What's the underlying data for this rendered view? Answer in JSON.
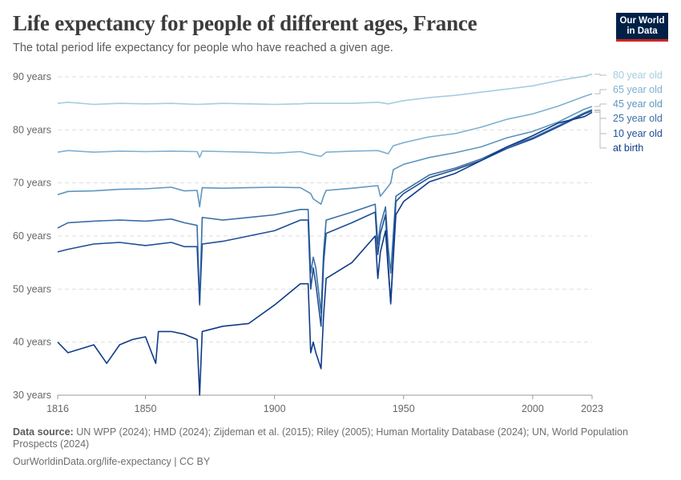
{
  "header": {
    "title": "Life expectancy for people of different ages, France",
    "subtitle": "The total period life expectancy for people who have reached a given age.",
    "logo_line1": "Our World",
    "logo_line2": "in Data"
  },
  "footer": {
    "source_label": "Data source:",
    "source_text": "UN WPP (2024); HMD (2024); Zijdeman et al. (2015); Riley (2005); Human Mortality Database (2024); UN, World Population Prospects (2024)",
    "link_text": "OurWorldinData.org/life-expectancy | CC BY"
  },
  "chart_data": {
    "type": "line",
    "title": "Life expectancy for people of different ages, France",
    "subtitle": "The total period life expectancy for people who have reached a given age.",
    "xlim": [
      1816,
      2023
    ],
    "ylim": [
      30,
      90
    ],
    "x_ticks": [
      1816,
      1850,
      1900,
      1950,
      2000,
      2023
    ],
    "y_ticks": [
      30,
      40,
      50,
      60,
      70,
      80,
      90
    ],
    "y_tick_labels": [
      "30 years",
      "40 years",
      "50 years",
      "60 years",
      "70 years",
      "80 years",
      "90 years"
    ],
    "grid": "horizontal dashed",
    "legend": "right, inline labels",
    "series": [
      {
        "name": "80 year old",
        "color": "#a5cde0",
        "x": [
          1816,
          1820,
          1830,
          1840,
          1850,
          1860,
          1870,
          1880,
          1890,
          1900,
          1910,
          1913,
          1920,
          1930,
          1940,
          1944,
          1950,
          1960,
          1970,
          1980,
          1990,
          2000,
          2010,
          2020,
          2023
        ],
        "y": [
          85.0,
          85.2,
          84.8,
          85.0,
          84.9,
          85.0,
          84.8,
          85.0,
          84.9,
          84.8,
          84.9,
          85.0,
          85.0,
          85.0,
          85.2,
          84.9,
          85.5,
          86.1,
          86.5,
          87.1,
          87.7,
          88.3,
          89.3,
          90.1,
          90.5
        ]
      },
      {
        "name": "65 year old",
        "color": "#7fb0d0",
        "x": [
          1816,
          1820,
          1830,
          1840,
          1850,
          1860,
          1870,
          1871,
          1872,
          1880,
          1890,
          1900,
          1910,
          1914,
          1918,
          1920,
          1930,
          1940,
          1944,
          1946,
          1950,
          1960,
          1970,
          1980,
          1990,
          2000,
          2010,
          2020,
          2023
        ],
        "y": [
          75.8,
          76.1,
          75.8,
          76.0,
          75.9,
          76.0,
          75.9,
          74.8,
          76.0,
          75.9,
          75.8,
          75.6,
          75.9,
          75.4,
          75.0,
          75.8,
          76.0,
          76.1,
          75.5,
          77.0,
          77.6,
          78.7,
          79.3,
          80.5,
          82.0,
          83.0,
          84.5,
          86.3,
          86.8
        ]
      },
      {
        "name": "45 year old",
        "color": "#5f96bf",
        "x": [
          1816,
          1820,
          1830,
          1840,
          1850,
          1860,
          1865,
          1870,
          1871,
          1872,
          1880,
          1890,
          1900,
          1910,
          1914,
          1915,
          1918,
          1919,
          1920,
          1930,
          1940,
          1941,
          1944,
          1945,
          1946,
          1950,
          1960,
          1970,
          1980,
          1990,
          2000,
          2010,
          2020,
          2023
        ],
        "y": [
          67.8,
          68.4,
          68.5,
          68.8,
          68.9,
          69.2,
          68.5,
          68.6,
          65.5,
          69.1,
          69.0,
          69.1,
          69.2,
          69.1,
          68.0,
          67.0,
          66.0,
          67.5,
          68.6,
          69.0,
          69.5,
          67.5,
          69.3,
          70.0,
          72.5,
          73.5,
          74.8,
          75.7,
          76.8,
          78.5,
          79.7,
          81.5,
          83.9,
          84.4
        ]
      },
      {
        "name": "25 year old",
        "color": "#3b6fa6",
        "x": [
          1816,
          1820,
          1830,
          1840,
          1850,
          1860,
          1865,
          1870,
          1871,
          1872,
          1880,
          1890,
          1900,
          1910,
          1913,
          1914,
          1915,
          1916,
          1918,
          1919,
          1920,
          1930,
          1939,
          1940,
          1941,
          1943,
          1944,
          1945,
          1947,
          1950,
          1960,
          1970,
          1980,
          1990,
          2000,
          2010,
          2020,
          2023
        ],
        "y": [
          61.5,
          62.5,
          62.8,
          63.0,
          62.8,
          63.2,
          62.5,
          62.0,
          47.0,
          63.5,
          63.0,
          63.5,
          64.0,
          65.0,
          65.0,
          53.0,
          56.0,
          54.0,
          45.5,
          57.0,
          63.0,
          64.5,
          66.0,
          58.5,
          62.0,
          65.5,
          58.0,
          53.0,
          67.5,
          68.5,
          71.5,
          72.8,
          74.5,
          76.8,
          78.5,
          80.8,
          83.2,
          83.8
        ]
      },
      {
        "name": "10 year old",
        "color": "#1f4e95",
        "x": [
          1816,
          1820,
          1830,
          1840,
          1850,
          1860,
          1865,
          1870,
          1871,
          1872,
          1880,
          1890,
          1900,
          1910,
          1913,
          1914,
          1915,
          1916,
          1918,
          1919,
          1920,
          1930,
          1939,
          1940,
          1941,
          1943,
          1944,
          1945,
          1947,
          1950,
          1960,
          1970,
          1980,
          1990,
          2000,
          2010,
          2020,
          2023
        ],
        "y": [
          57.0,
          57.5,
          58.5,
          58.8,
          58.2,
          58.8,
          58.0,
          58.0,
          47.3,
          58.5,
          59.0,
          60.0,
          61.0,
          63.0,
          63.0,
          50.0,
          54.0,
          51.0,
          43.0,
          55.0,
          60.5,
          62.5,
          64.5,
          56.5,
          60.5,
          64.0,
          55.0,
          47.2,
          66.5,
          68.0,
          71.0,
          72.5,
          74.2,
          76.5,
          78.3,
          80.6,
          83.0,
          83.6
        ]
      },
      {
        "name": "at birth",
        "color": "#0f3b87",
        "x": [
          1816,
          1820,
          1830,
          1835,
          1840,
          1845,
          1850,
          1854,
          1855,
          1860,
          1865,
          1870,
          1871,
          1872,
          1880,
          1890,
          1900,
          1905,
          1910,
          1913,
          1914,
          1915,
          1916,
          1918,
          1919,
          1920,
          1930,
          1939,
          1940,
          1941,
          1943,
          1944,
          1945,
          1947,
          1950,
          1960,
          1970,
          1980,
          1990,
          2000,
          2010,
          2020,
          2023
        ],
        "y": [
          40.0,
          38.0,
          39.5,
          36.0,
          39.5,
          40.5,
          41.0,
          36.0,
          42.0,
          42.0,
          41.5,
          40.5,
          30.0,
          42.0,
          43.0,
          43.5,
          47.0,
          49.0,
          51.0,
          51.0,
          38.0,
          40.0,
          38.0,
          35.0,
          45.0,
          52.0,
          55.0,
          60.0,
          52.0,
          57.0,
          61.0,
          54.0,
          47.5,
          64.0,
          66.5,
          70.2,
          71.8,
          74.2,
          76.8,
          78.9,
          81.3,
          82.5,
          83.3
        ]
      }
    ]
  }
}
